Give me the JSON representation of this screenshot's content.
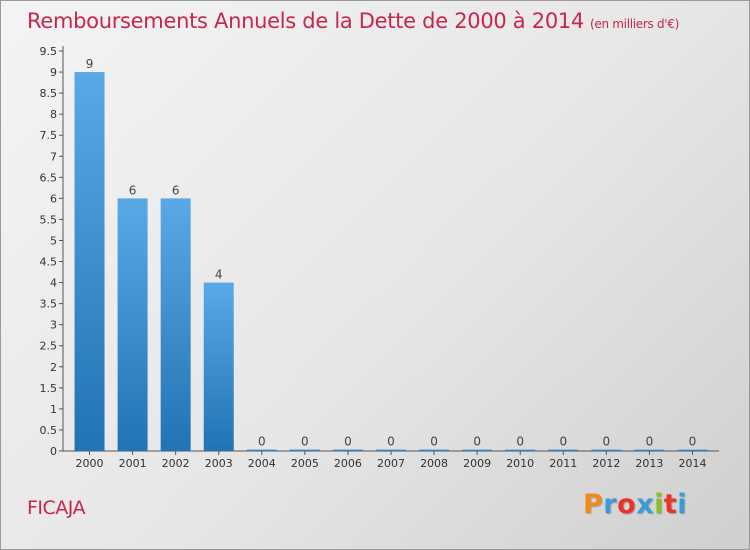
{
  "header": {
    "title": "Remboursements Annuels de la Dette de 2000 à 2014",
    "unit": "(en milliers d'€)"
  },
  "footer": {
    "place": "FICAJA",
    "logo": "Proxiti",
    "logo_colors": [
      "#f08a1e",
      "#3a9bd9",
      "#e8342b",
      "#3a9bd9",
      "#8bbf2a",
      "#e8342b",
      "#3a9bd9"
    ]
  },
  "chart_data": {
    "type": "bar",
    "title": "Remboursements Annuels de la Dette de 2000 à 2014",
    "xlabel": "",
    "ylabel": "",
    "categories": [
      "2000",
      "2001",
      "2002",
      "2003",
      "2004",
      "2005",
      "2006",
      "2007",
      "2008",
      "2009",
      "2010",
      "2011",
      "2012",
      "2013",
      "2014"
    ],
    "values": [
      9,
      6,
      6,
      4,
      0,
      0,
      0,
      0,
      0,
      0,
      0,
      0,
      0,
      0,
      0
    ],
    "value_labels": [
      "9",
      "6",
      "6",
      "4",
      "0",
      "0",
      "0",
      "0",
      "0",
      "0",
      "0",
      "0",
      "0",
      "0",
      "0"
    ],
    "ylim": [
      0,
      9.5
    ],
    "yticks": [
      "0",
      "0.5",
      "1",
      "1.5",
      "2",
      "2.5",
      "3",
      "3.5",
      "4",
      "4.5",
      "5",
      "5.5",
      "6",
      "6.5",
      "7",
      "7.5",
      "8",
      "8.5",
      "9",
      "9.5"
    ],
    "grid": false,
    "colors": {
      "bar_top": "#5aa9e6",
      "bar_bottom": "#2273b4",
      "axis": "#555555"
    }
  }
}
